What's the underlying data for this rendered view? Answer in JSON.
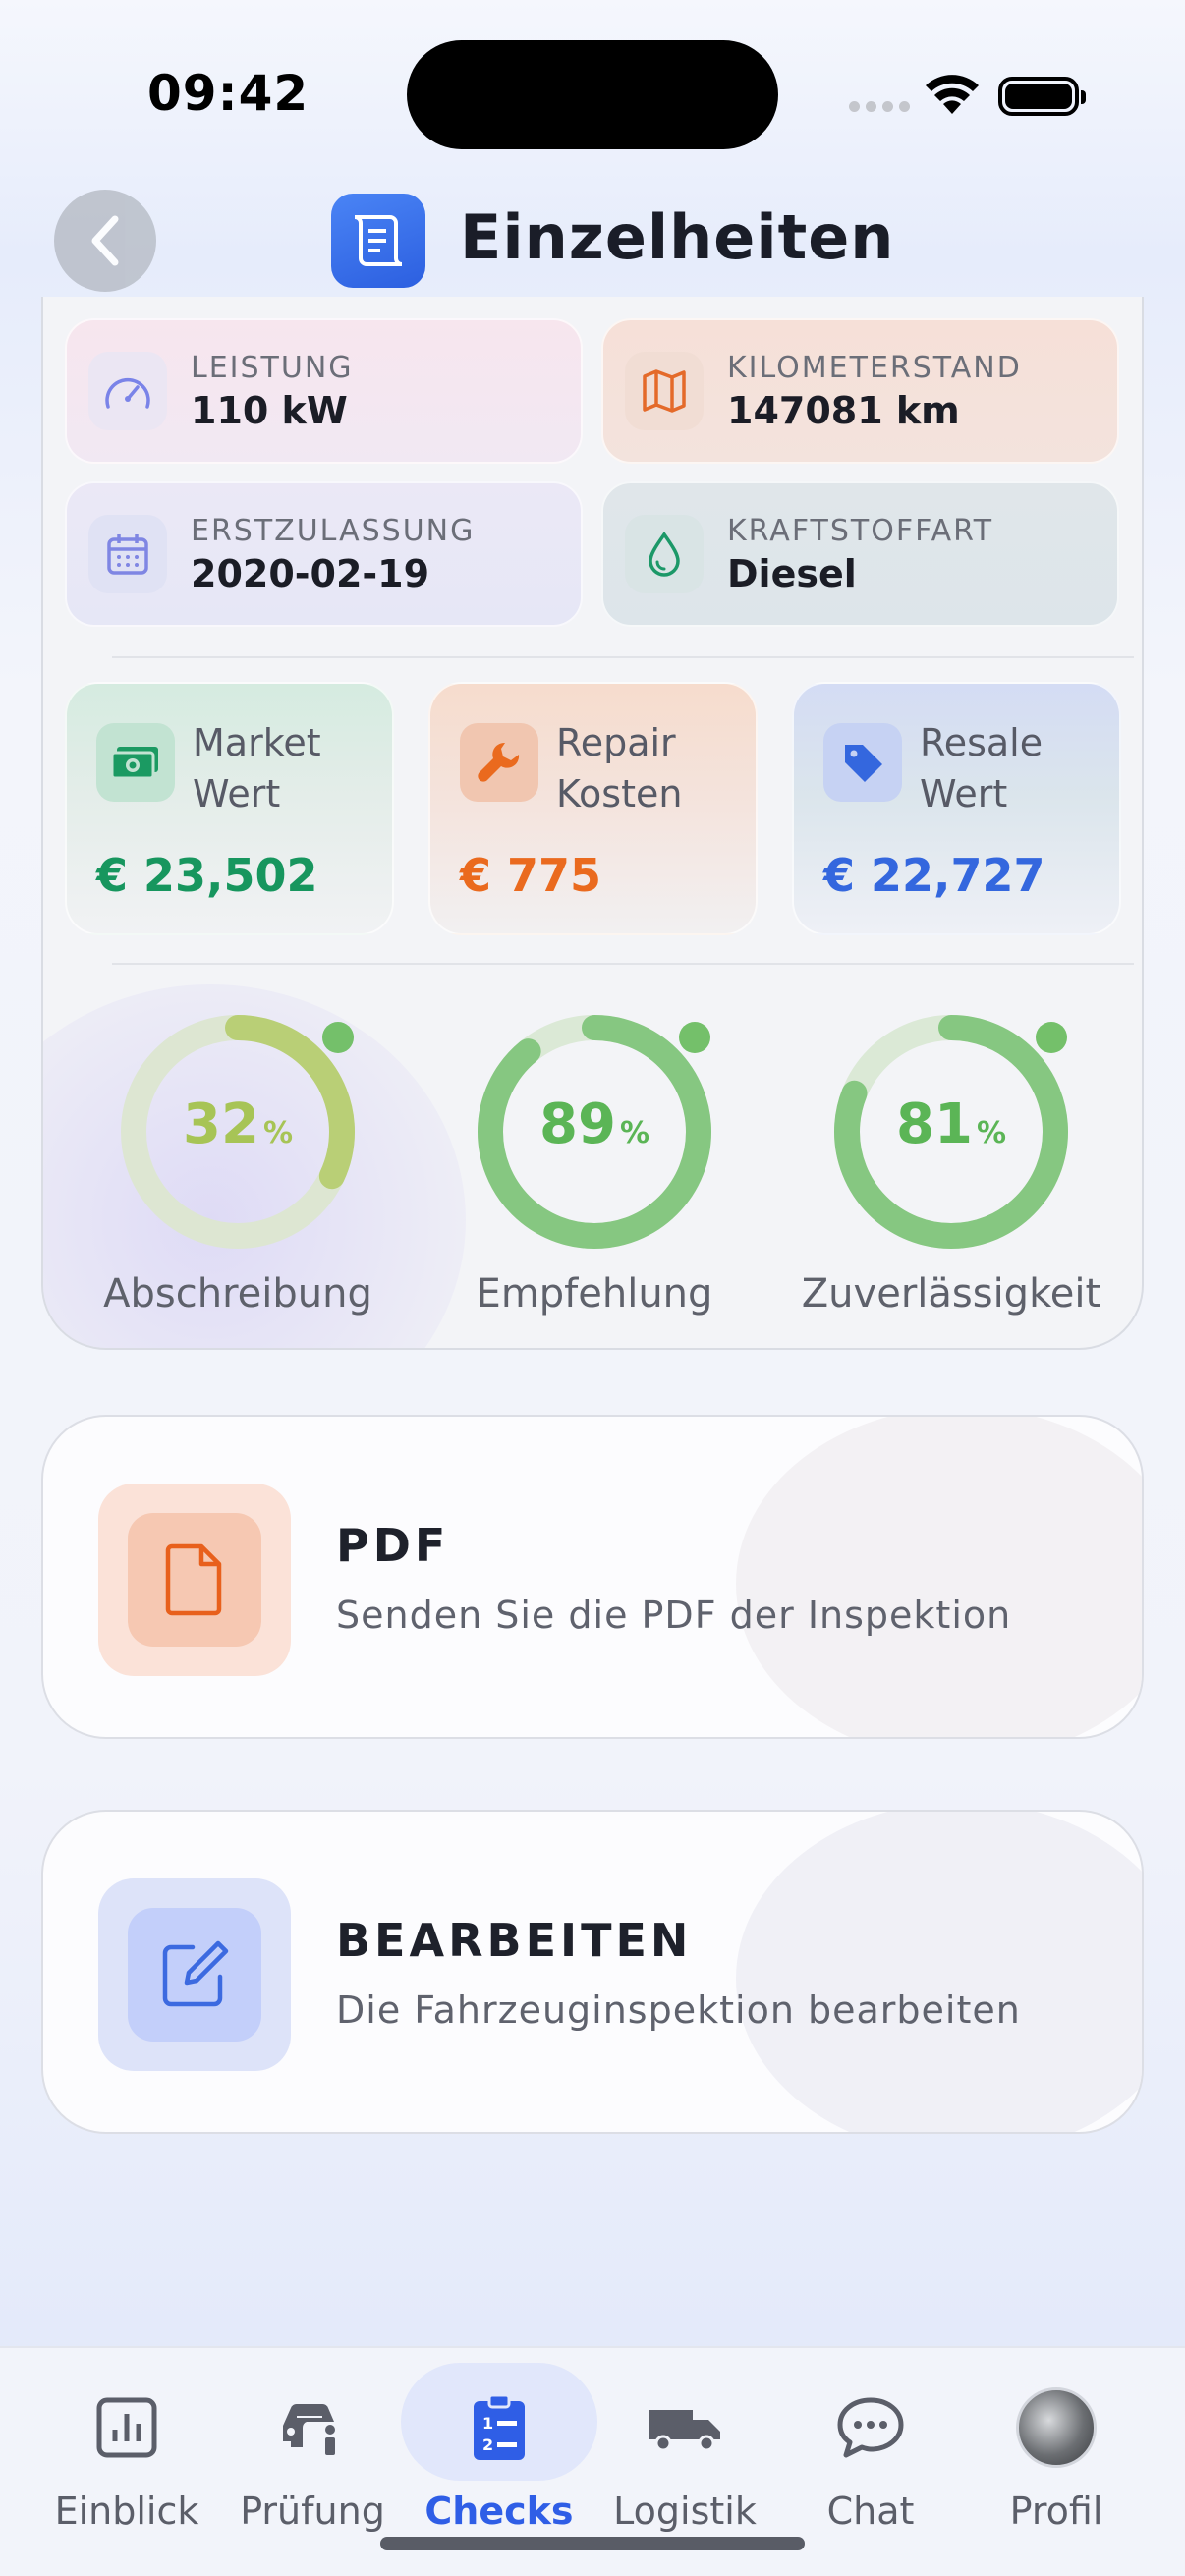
{
  "status_bar": {
    "time": "09:42"
  },
  "header": {
    "title": "Einzelheiten"
  },
  "specs": [
    {
      "label": "LEISTUNG",
      "value": "110 kW",
      "icon": "speedometer-icon"
    },
    {
      "label": "KILOMETERSTAND",
      "value": "147081 km",
      "icon": "map-icon"
    },
    {
      "label": "ERSTZULASSUNG",
      "value": "2020-02-19",
      "icon": "calendar-icon"
    },
    {
      "label": "KRAFTSTOFFART",
      "value": "Diesel",
      "icon": "fuel-drop-icon"
    }
  ],
  "values": [
    {
      "label_line1": "Market",
      "label_line2": "Wert",
      "amount": "€ 23,502",
      "color": "#17965e",
      "icon": "money-icon"
    },
    {
      "label_line1": "Repair",
      "label_line2": "Kosten",
      "amount": "€ 775",
      "color": "#ea6a1e",
      "icon": "wrench-icon"
    },
    {
      "label_line1": "Resale",
      "label_line2": "Wert",
      "amount": "€ 22,727",
      "color": "#3467de",
      "icon": "tag-icon"
    }
  ],
  "gauges": [
    {
      "value": 32,
      "unit": "%",
      "label": "Abschreibung",
      "color": "#a7c456"
    },
    {
      "value": 89,
      "unit": "%",
      "label": "Empfehlung",
      "color": "#6fc06e"
    },
    {
      "value": 81,
      "unit": "%",
      "label": "Zuverlässigkeit",
      "color": "#6fc06e"
    }
  ],
  "actions": [
    {
      "title": "PDF",
      "description": "Senden Sie die PDF der Inspektion",
      "icon": "document-icon"
    },
    {
      "title": "BEARBEITEN",
      "description": "Die Fahrzeuginspektion bearbeiten",
      "icon": "edit-icon"
    }
  ],
  "tabs": [
    {
      "label": "Einblick",
      "icon": "chart-icon"
    },
    {
      "label": "Prüfung",
      "icon": "car-info-icon"
    },
    {
      "label": "Checks",
      "icon": "checklist-icon",
      "active": true
    },
    {
      "label": "Logistik",
      "icon": "truck-icon"
    },
    {
      "label": "Chat",
      "icon": "chat-bubble-icon"
    },
    {
      "label": "Profil",
      "icon": "avatar"
    }
  ]
}
